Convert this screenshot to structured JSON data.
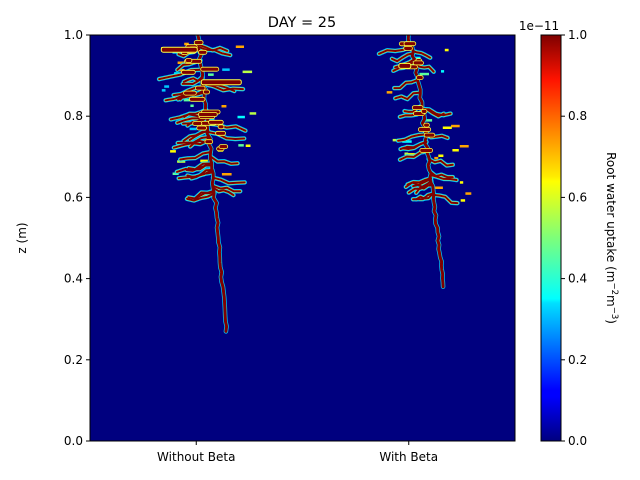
{
  "chart_data": {
    "type": "heatmap",
    "title": "DAY = 25",
    "ylabel": "z (m)",
    "xlabel": "",
    "categories": [
      "Without Beta",
      "With Beta"
    ],
    "ylim": [
      0,
      1
    ],
    "yticks": [
      "0.0",
      "0.2",
      "0.4",
      "0.6",
      "0.8",
      "1.0"
    ],
    "colorbar": {
      "label_main": "Root water uptake (m",
      "sup1": "−2",
      "mid": "m",
      "sup2": "−3",
      "close": ")",
      "offset_label": "1e−11",
      "range": [
        0,
        1
      ],
      "ticks": [
        "0.0",
        "0.2",
        "0.4",
        "0.6",
        "0.8",
        "1.0"
      ],
      "colormap": "jet"
    },
    "grid": false,
    "background_color": "#00007f",
    "series": [
      {
        "category": "Without Beta",
        "root_tip_depth_m": 0.27,
        "root_top_m": 1.0,
        "dense_uptake_zone_m": [
          0.6,
          1.0
        ],
        "peak_value": 1.0
      },
      {
        "category": "With Beta",
        "root_tip_depth_m": 0.38,
        "root_top_m": 1.0,
        "dense_uptake_zone_m": [
          0.6,
          1.0
        ],
        "peak_value": 1.0
      }
    ]
  }
}
